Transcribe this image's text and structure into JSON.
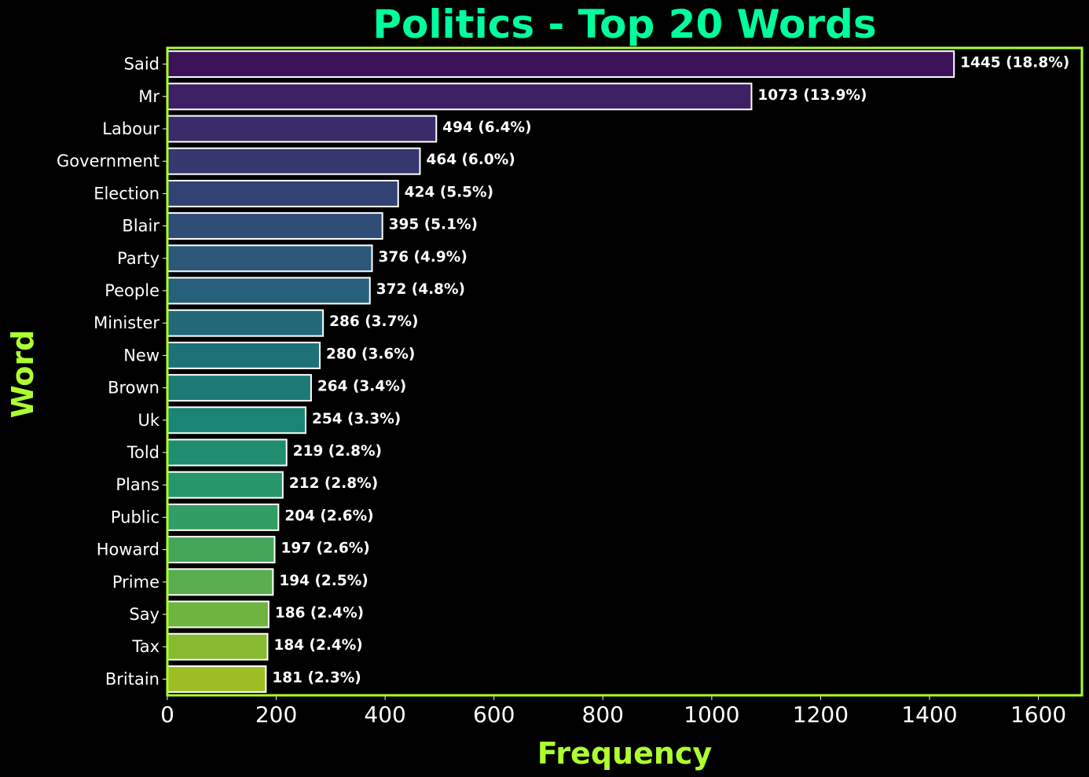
{
  "colors": {
    "background": "#000000",
    "title": "#00ff9c",
    "axis_label": "#adff2f",
    "frame": "#adff2f",
    "text": "#ffffff",
    "bar_edge": "#ffffff",
    "colormap": "viridis"
  },
  "chart_data": {
    "type": "bar",
    "orientation": "horizontal",
    "title": "Politics - Top 20 Words",
    "xlabel": "Frequency",
    "ylabel": "Word",
    "xlim": [
      0,
      1680
    ],
    "xticks": [
      0,
      200,
      400,
      600,
      800,
      1000,
      1200,
      1400,
      1600
    ],
    "grid": false,
    "legend": "none",
    "categories": [
      "Said",
      "Mr",
      "Labour",
      "Government",
      "Election",
      "Blair",
      "Party",
      "People",
      "Minister",
      "New",
      "Brown",
      "Uk",
      "Told",
      "Plans",
      "Public",
      "Howard",
      "Prime",
      "Say",
      "Tax",
      "Britain"
    ],
    "values": [
      1445,
      1073,
      494,
      464,
      424,
      395,
      376,
      372,
      286,
      280,
      264,
      254,
      219,
      212,
      204,
      197,
      194,
      186,
      184,
      181
    ],
    "labels": [
      "1445 (18.8%)",
      "1073 (13.9%)",
      "494 (6.4%)",
      "464 (6.0%)",
      "424 (5.5%)",
      "395 (5.1%)",
      "376 (4.9%)",
      "372 (4.8%)",
      "286 (3.7%)",
      "280 (3.6%)",
      "264 (3.4%)",
      "254 (3.3%)",
      "219 (2.8%)",
      "212 (2.8%)",
      "204 (2.6%)",
      "197 (2.6%)",
      "194 (2.5%)",
      "186 (2.4%)",
      "184 (2.4%)",
      "181 (2.3%)"
    ]
  }
}
